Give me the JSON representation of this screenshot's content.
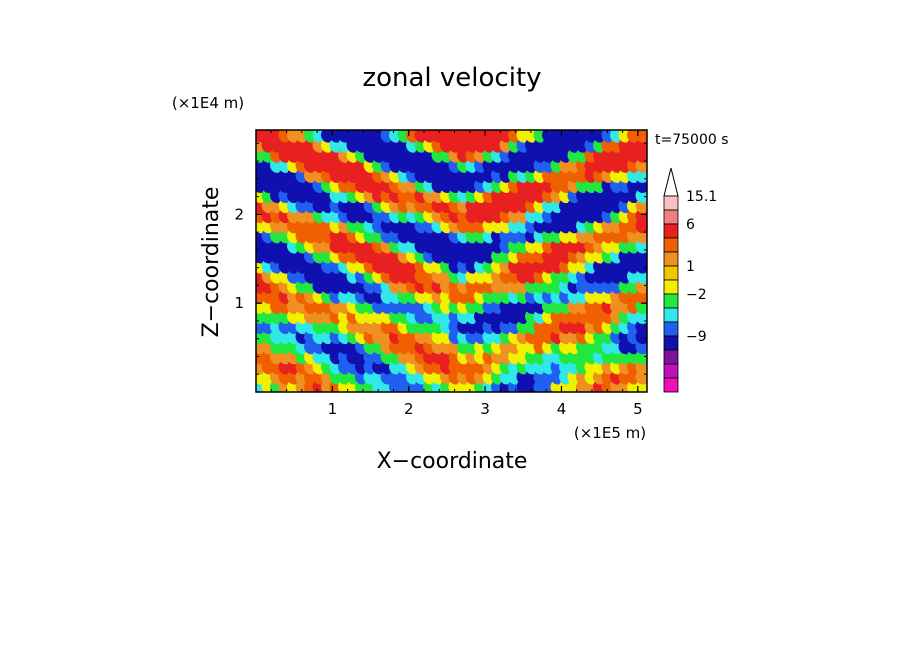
{
  "chart_data": {
    "type": "heatmap",
    "title": "zonal velocity",
    "xlabel": "X−coordinate",
    "ylabel": "Z−coordinate",
    "x_scale_label": "(×1E5 m)",
    "y_scale_label": "(×1E4 m)",
    "time_label": "t=75000 s",
    "xlim": [
      0,
      5.12
    ],
    "ylim": [
      0,
      2.95
    ],
    "x_ticks": [
      "1",
      "2",
      "3",
      "4",
      "5"
    ],
    "y_ticks": [
      "1",
      "2"
    ],
    "colorbar": {
      "labels": [
        "15.1",
        "6",
        "1",
        "−2",
        "−9"
      ],
      "levels_top_to_bottom": [
        "15.1",
        "",
        "6",
        "",
        "",
        "1",
        "",
        "−2",
        "",
        "",
        "−9",
        ""
      ],
      "colors_top_to_bottom": [
        "#f8c0c0",
        "#f08080",
        "#e82020",
        "#f06000",
        "#f09020",
        "#f0c800",
        "#f0f000",
        "#20e840",
        "#30e8e8",
        "#2060f0",
        "#1010b0",
        "#8010a0",
        "#c010b8",
        "#f010b8"
      ],
      "extend": "max"
    },
    "field_description": "zonal velocity field; alternating bands"
  }
}
